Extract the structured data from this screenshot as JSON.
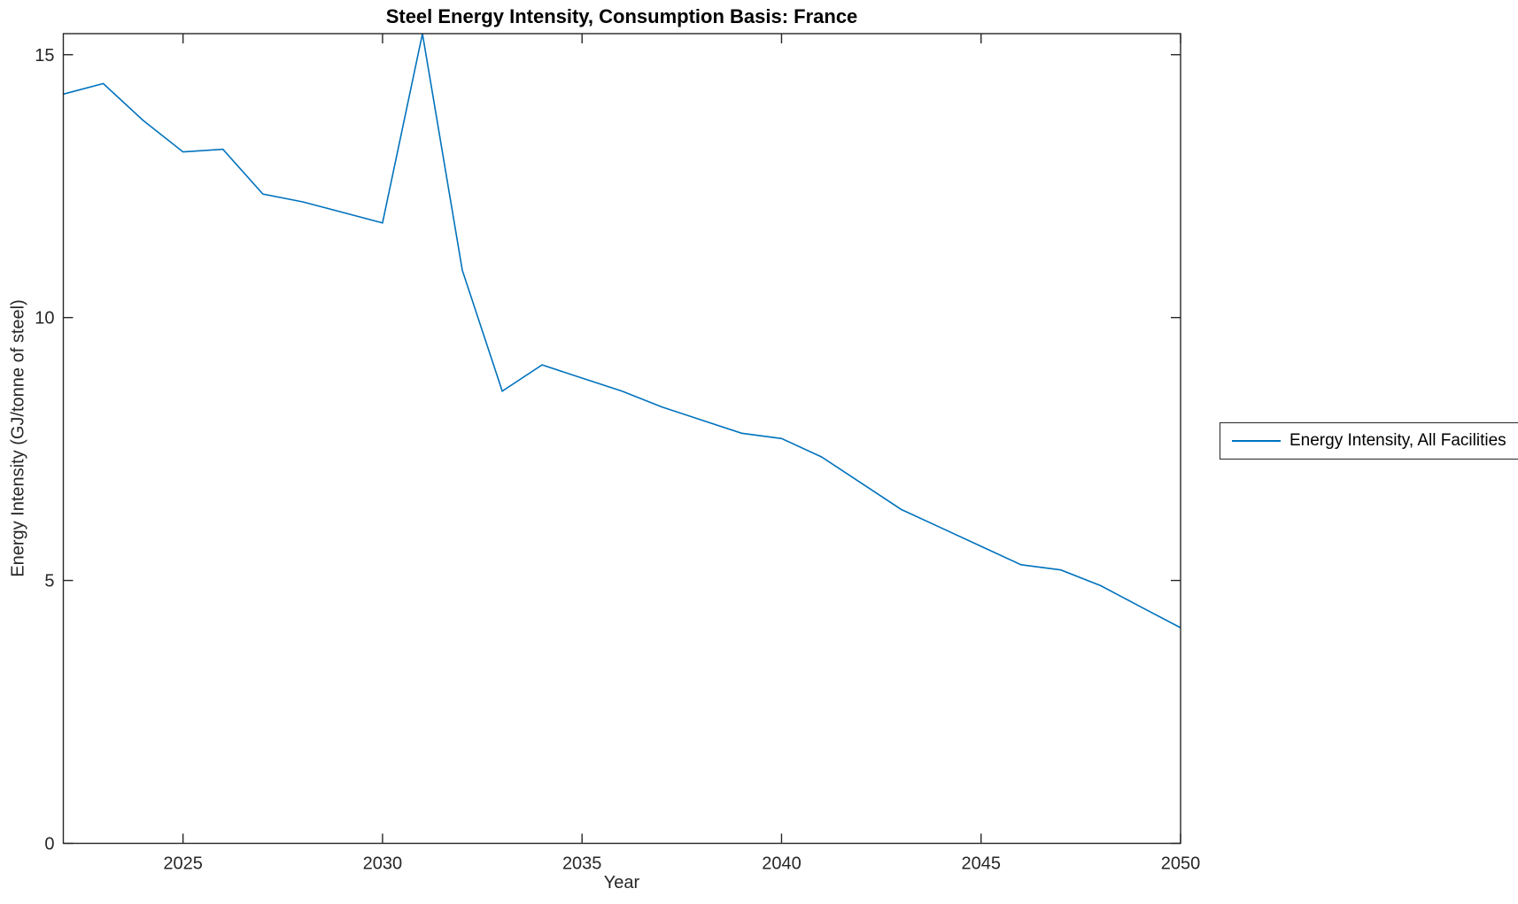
{
  "title": "Steel Energy Intensity, Consumption Basis: France",
  "xlabel": "Year",
  "ylabel": "Energy Intensity (GJ/tonne of steel)",
  "legend": {
    "label": "Energy Intensity, All Facilities",
    "position": "right-outside"
  },
  "colors": {
    "line": "#0072BD",
    "axis": "#262626",
    "background": "#ffffff",
    "title": "#000000"
  },
  "chart_data": {
    "type": "line",
    "title": "Steel Energy Intensity, Consumption Basis: France",
    "xlabel": "Year",
    "ylabel": "Energy Intensity (GJ/tonne of steel)",
    "x": [
      2022,
      2023,
      2024,
      2025,
      2026,
      2027,
      2028,
      2029,
      2030,
      2031,
      2032,
      2033,
      2034,
      2035,
      2036,
      2037,
      2038,
      2039,
      2040,
      2041,
      2042,
      2043,
      2044,
      2045,
      2046,
      2047,
      2048,
      2049,
      2050
    ],
    "series": [
      {
        "name": "Energy Intensity, All Facilities",
        "values": [
          14.25,
          14.45,
          13.75,
          13.15,
          13.2,
          12.35,
          12.2,
          12.0,
          11.8,
          15.4,
          10.9,
          8.6,
          9.1,
          8.85,
          8.6,
          8.3,
          8.05,
          7.8,
          7.7,
          7.35,
          6.85,
          6.35,
          6.0,
          5.65,
          5.3,
          5.2,
          4.9,
          4.5,
          4.1
        ]
      }
    ],
    "xlim": [
      2022,
      2050
    ],
    "ylim": [
      0,
      15.4
    ],
    "xticks": [
      2025,
      2030,
      2035,
      2040,
      2045,
      2050
    ],
    "yticks": [
      0,
      5,
      10,
      15
    ],
    "grid": false,
    "box": true,
    "legend_position": "right-outside"
  }
}
